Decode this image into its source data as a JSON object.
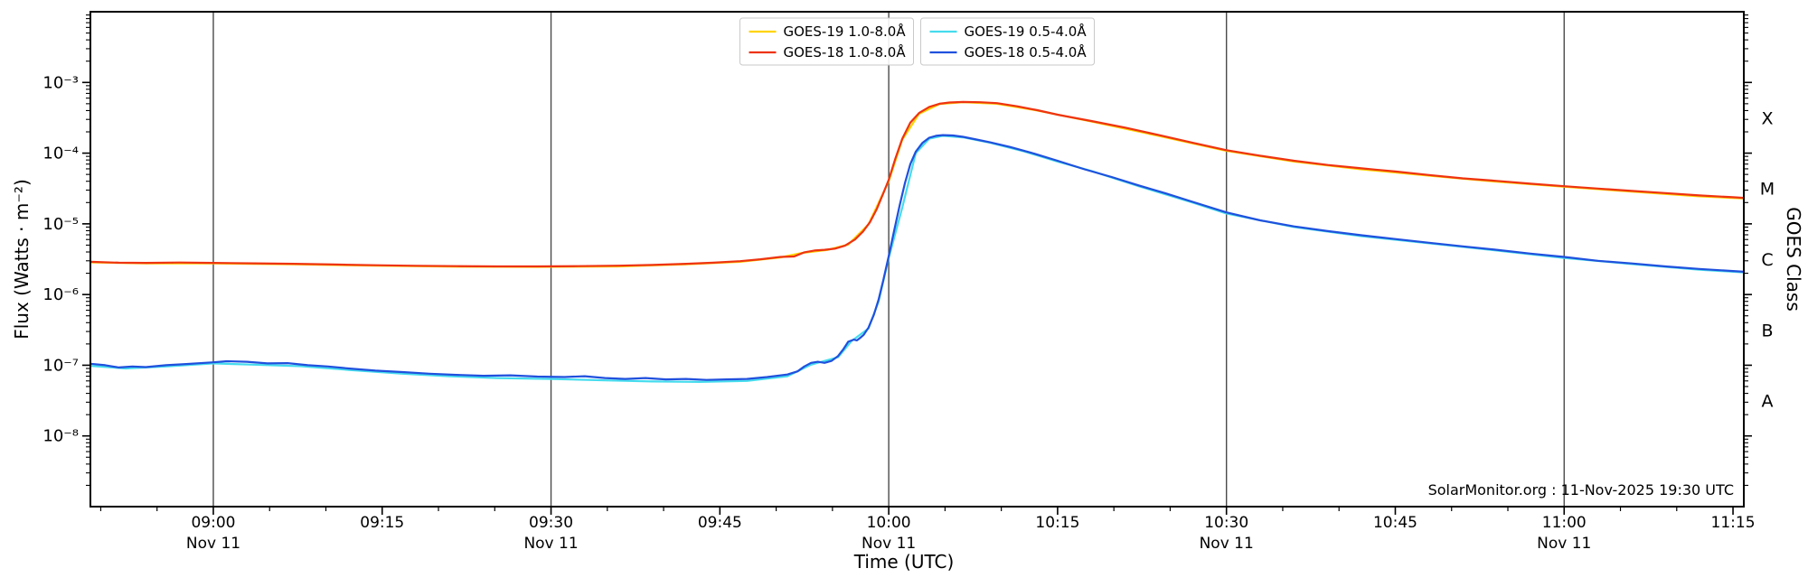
{
  "footer_note": "SolarMonitor.org : 11-Nov-2025 19:30 UTC",
  "chart_data": {
    "type": "line",
    "title": "",
    "xlabel": "Time (UTC)",
    "ylabel_left": "Flux (Watts · m⁻²)",
    "ylabel_right": "GOES Class",
    "x_domain_hours": [
      8.818,
      11.266
    ],
    "y_domain": [
      1e-09,
      0.01
    ],
    "grid": "vertical-30min",
    "legend_position": "top-center",
    "gridline_hours": [
      9.0,
      9.5,
      10.0,
      10.5,
      11.0
    ],
    "x_major_ticks": [
      {
        "hour": 9.0,
        "label": "09:00",
        "sublabel": "Nov 11"
      },
      {
        "hour": 9.25,
        "label": "09:15"
      },
      {
        "hour": 9.5,
        "label": "09:30",
        "sublabel": "Nov 11"
      },
      {
        "hour": 9.75,
        "label": "09:45"
      },
      {
        "hour": 10.0,
        "label": "10:00",
        "sublabel": "Nov 11"
      },
      {
        "hour": 10.25,
        "label": "10:15"
      },
      {
        "hour": 10.5,
        "label": "10:30",
        "sublabel": "Nov 11"
      },
      {
        "hour": 10.75,
        "label": "10:45"
      },
      {
        "hour": 11.0,
        "label": "11:00",
        "sublabel": "Nov 11"
      },
      {
        "hour": 11.25,
        "label": "11:15"
      }
    ],
    "y_ticks": [
      {
        "value": 0.001,
        "label": "10⁻³"
      },
      {
        "value": 0.0001,
        "label": "10⁻⁴"
      },
      {
        "value": 1e-05,
        "label": "10⁻⁵"
      },
      {
        "value": 1e-06,
        "label": "10⁻⁶"
      },
      {
        "value": 1e-07,
        "label": "10⁻⁷"
      },
      {
        "value": 1e-08,
        "label": "10⁻⁸"
      }
    ],
    "class_labels": [
      {
        "label": "X",
        "value": 0.0003162
      },
      {
        "label": "M",
        "value": 3.162e-05
      },
      {
        "label": "C",
        "value": 3.162e-06
      },
      {
        "label": "B",
        "value": 3.162e-07
      },
      {
        "label": "A",
        "value": 3.162e-08
      }
    ],
    "legend_boxes": [
      [
        0,
        2
      ],
      [
        1,
        3
      ]
    ],
    "series": [
      {
        "name": "GOES-19 1.0-8.0Å",
        "color": "#ffd400",
        "points": [
          [
            8.818,
            2.85e-06
          ],
          [
            8.9,
            2.75e-06
          ],
          [
            9.0,
            2.75e-06
          ],
          [
            9.12,
            2.68e-06
          ],
          [
            9.24,
            2.56e-06
          ],
          [
            9.36,
            2.48e-06
          ],
          [
            9.48,
            2.46e-06
          ],
          [
            9.6,
            2.5e-06
          ],
          [
            9.7,
            2.68e-06
          ],
          [
            9.78,
            2.9e-06
          ],
          [
            9.84,
            3.35e-06
          ],
          [
            9.87,
            3.85e-06
          ],
          [
            9.91,
            4.3e-06
          ],
          [
            9.94,
            5.1e-06
          ],
          [
            9.97,
            9.8e-06
          ],
          [
            10.0,
            4e-05
          ],
          [
            10.02,
            0.000155
          ],
          [
            10.045,
            0.00036
          ],
          [
            10.075,
            0.000495
          ],
          [
            10.11,
            0.000525
          ],
          [
            10.16,
            0.0005
          ],
          [
            10.22,
            0.0004
          ],
          [
            10.3,
            0.00028
          ],
          [
            10.4,
            0.000175
          ],
          [
            10.5,
            0.000108
          ],
          [
            10.6,
            7.6e-05
          ],
          [
            10.7,
            5.9e-05
          ],
          [
            10.8,
            4.8e-05
          ],
          [
            10.9,
            3.95e-05
          ],
          [
            11.0,
            3.35e-05
          ],
          [
            11.1,
            2.85e-05
          ],
          [
            11.2,
            2.45e-05
          ],
          [
            11.266,
            2.28e-05
          ]
        ]
      },
      {
        "name": "GOES-19 0.5-4.0Å",
        "color": "#45dcee",
        "points": [
          [
            8.818,
            9.8e-08
          ],
          [
            8.87,
            9e-08
          ],
          [
            8.93,
            9.6e-08
          ],
          [
            9.0,
            1.06e-07
          ],
          [
            9.06,
            1.02e-07
          ],
          [
            9.13,
            9.7e-08
          ],
          [
            9.2,
            8.6e-08
          ],
          [
            9.28,
            7.6e-08
          ],
          [
            9.35,
            7e-08
          ],
          [
            9.42,
            6.6e-08
          ],
          [
            9.5,
            6.4e-08
          ],
          [
            9.58,
            6.1e-08
          ],
          [
            9.65,
            5.9e-08
          ],
          [
            9.72,
            5.8e-08
          ],
          [
            9.79,
            6e-08
          ],
          [
            9.85,
            7e-08
          ],
          [
            9.885,
            1.02e-07
          ],
          [
            9.925,
            1.3e-07
          ],
          [
            9.945,
            2.2e-07
          ],
          [
            9.97,
            3.3e-07
          ],
          [
            9.985,
            8e-07
          ],
          [
            10.0,
            3.3e-06
          ],
          [
            10.02,
            1.7e-05
          ],
          [
            10.04,
            0.0001
          ],
          [
            10.06,
            0.00016
          ],
          [
            10.08,
            0.000176
          ],
          [
            10.11,
            0.000167
          ],
          [
            10.15,
            0.00014
          ],
          [
            10.2,
            0.000106
          ],
          [
            10.25,
            7.6e-05
          ],
          [
            10.3,
            5.6e-05
          ],
          [
            10.37,
            3.4e-05
          ],
          [
            10.45,
            2e-05
          ],
          [
            10.5,
            1.4e-05
          ],
          [
            10.6,
            9e-06
          ],
          [
            10.7,
            6.7e-06
          ],
          [
            10.8,
            5.3e-06
          ],
          [
            10.9,
            4.2e-06
          ],
          [
            11.0,
            3.3e-06
          ],
          [
            11.1,
            2.7e-06
          ],
          [
            11.2,
            2.25e-06
          ],
          [
            11.266,
            2.05e-06
          ]
        ]
      },
      {
        "name": "GOES-18 1.0-8.0Å",
        "color": "#ee3311",
        "points": [
          [
            8.818,
            2.9e-06
          ],
          [
            8.86,
            2.82e-06
          ],
          [
            8.9,
            2.8e-06
          ],
          [
            8.95,
            2.84e-06
          ],
          [
            9.0,
            2.8e-06
          ],
          [
            9.06,
            2.76e-06
          ],
          [
            9.12,
            2.72e-06
          ],
          [
            9.18,
            2.66e-06
          ],
          [
            9.24,
            2.6e-06
          ],
          [
            9.3,
            2.55e-06
          ],
          [
            9.36,
            2.52e-06
          ],
          [
            9.42,
            2.5e-06
          ],
          [
            9.48,
            2.5e-06
          ],
          [
            9.54,
            2.52e-06
          ],
          [
            9.6,
            2.56e-06
          ],
          [
            9.65,
            2.62e-06
          ],
          [
            9.7,
            2.72e-06
          ],
          [
            9.74,
            2.82e-06
          ],
          [
            9.78,
            2.96e-06
          ],
          [
            9.81,
            3.15e-06
          ],
          [
            9.84,
            3.4e-06
          ],
          [
            9.86,
            3.45e-06
          ],
          [
            9.875,
            3.95e-06
          ],
          [
            9.89,
            4.2e-06
          ],
          [
            9.905,
            4.3e-06
          ],
          [
            9.92,
            4.45e-06
          ],
          [
            9.935,
            4.9e-06
          ],
          [
            9.95,
            6e-06
          ],
          [
            9.962,
            7.8e-06
          ],
          [
            9.972,
            1.05e-05
          ],
          [
            9.982,
            1.6e-05
          ],
          [
            9.992,
            2.7e-05
          ],
          [
            10.0,
            4.2e-05
          ],
          [
            10.01,
            8.5e-05
          ],
          [
            10.02,
            0.00016
          ],
          [
            10.032,
            0.00027
          ],
          [
            10.045,
            0.00037
          ],
          [
            10.06,
            0.00045
          ],
          [
            10.075,
            0.0005
          ],
          [
            10.09,
            0.00052
          ],
          [
            10.11,
            0.00053
          ],
          [
            10.135,
            0.000525
          ],
          [
            10.16,
            0.00051
          ],
          [
            10.19,
            0.00046
          ],
          [
            10.22,
            0.000405
          ],
          [
            10.25,
            0.00035
          ],
          [
            10.3,
            0.000285
          ],
          [
            10.35,
            0.00023
          ],
          [
            10.4,
            0.00018
          ],
          [
            10.45,
            0.00014
          ],
          [
            10.5,
            0.00011
          ],
          [
            10.55,
            9.2e-05
          ],
          [
            10.6,
            7.8e-05
          ],
          [
            10.65,
            6.8e-05
          ],
          [
            10.7,
            6.1e-05
          ],
          [
            10.75,
            5.5e-05
          ],
          [
            10.8,
            4.9e-05
          ],
          [
            10.85,
            4.4e-05
          ],
          [
            10.9,
            4.05e-05
          ],
          [
            10.95,
            3.7e-05
          ],
          [
            11.0,
            3.4e-05
          ],
          [
            11.05,
            3.15e-05
          ],
          [
            11.1,
            2.92e-05
          ],
          [
            11.15,
            2.72e-05
          ],
          [
            11.2,
            2.52e-05
          ],
          [
            11.25,
            2.38e-05
          ],
          [
            11.266,
            2.33e-05
          ]
        ]
      },
      {
        "name": "GOES-18 0.5-4.0Å",
        "color": "#2050dd",
        "points": [
          [
            8.818,
            1.05e-07
          ],
          [
            8.84,
            1e-07
          ],
          [
            8.86,
            9.3e-08
          ],
          [
            8.88,
            9.6e-08
          ],
          [
            8.9,
            9.4e-08
          ],
          [
            8.93,
            1e-07
          ],
          [
            8.96,
            1.04e-07
          ],
          [
            9.0,
            1.1e-07
          ],
          [
            9.02,
            1.14e-07
          ],
          [
            9.05,
            1.12e-07
          ],
          [
            9.08,
            1.06e-07
          ],
          [
            9.11,
            1.07e-07
          ],
          [
            9.14,
            1e-07
          ],
          [
            9.17,
            9.6e-08
          ],
          [
            9.2,
            9e-08
          ],
          [
            9.24,
            8.4e-08
          ],
          [
            9.28,
            8e-08
          ],
          [
            9.32,
            7.6e-08
          ],
          [
            9.36,
            7.3e-08
          ],
          [
            9.4,
            7.1e-08
          ],
          [
            9.44,
            7.2e-08
          ],
          [
            9.48,
            6.9e-08
          ],
          [
            9.52,
            6.8e-08
          ],
          [
            9.55,
            7e-08
          ],
          [
            9.58,
            6.6e-08
          ],
          [
            9.61,
            6.4e-08
          ],
          [
            9.64,
            6.6e-08
          ],
          [
            9.67,
            6.3e-08
          ],
          [
            9.7,
            6.4e-08
          ],
          [
            9.73,
            6.2e-08
          ],
          [
            9.76,
            6.3e-08
          ],
          [
            9.79,
            6.4e-08
          ],
          [
            9.82,
            6.8e-08
          ],
          [
            9.85,
            7.4e-08
          ],
          [
            9.865,
            8.2e-08
          ],
          [
            9.875,
            9.6e-08
          ],
          [
            9.885,
            1.08e-07
          ],
          [
            9.895,
            1.12e-07
          ],
          [
            9.905,
            1.08e-07
          ],
          [
            9.915,
            1.15e-07
          ],
          [
            9.925,
            1.35e-07
          ],
          [
            9.933,
            1.7e-07
          ],
          [
            9.94,
            2.15e-07
          ],
          [
            9.948,
            2.3e-07
          ],
          [
            9.953,
            2.25e-07
          ],
          [
            9.958,
            2.45e-07
          ],
          [
            9.963,
            2.7e-07
          ],
          [
            9.97,
            3.4e-07
          ],
          [
            9.978,
            5.2e-07
          ],
          [
            9.985,
            8.5e-07
          ],
          [
            9.992,
            1.6e-06
          ],
          [
            10.0,
            3.5e-06
          ],
          [
            10.008,
            8e-06
          ],
          [
            10.016,
            1.8e-05
          ],
          [
            10.024,
            3.8e-05
          ],
          [
            10.032,
            7e-05
          ],
          [
            10.04,
            0.000105
          ],
          [
            10.05,
            0.00014
          ],
          [
            10.06,
            0.000165
          ],
          [
            10.07,
            0.000176
          ],
          [
            10.08,
            0.00018
          ],
          [
            10.095,
            0.000178
          ],
          [
            10.11,
            0.00017
          ],
          [
            10.13,
            0.000156
          ],
          [
            10.15,
            0.000142
          ],
          [
            10.18,
            0.000122
          ],
          [
            10.21,
            0.000102
          ],
          [
            10.25,
            7.8e-05
          ],
          [
            10.29,
            5.9e-05
          ],
          [
            10.33,
            4.6e-05
          ],
          [
            10.37,
            3.5e-05
          ],
          [
            10.41,
            2.7e-05
          ],
          [
            10.45,
            2.05e-05
          ],
          [
            10.5,
            1.45e-05
          ],
          [
            10.55,
            1.12e-05
          ],
          [
            10.6,
            9.2e-06
          ],
          [
            10.65,
            7.9e-06
          ],
          [
            10.7,
            6.9e-06
          ],
          [
            10.75,
            6.1e-06
          ],
          [
            10.8,
            5.4e-06
          ],
          [
            10.85,
            4.8e-06
          ],
          [
            10.9,
            4.3e-06
          ],
          [
            10.95,
            3.8e-06
          ],
          [
            11.0,
            3.4e-06
          ],
          [
            11.05,
            3e-06
          ],
          [
            11.1,
            2.75e-06
          ],
          [
            11.15,
            2.5e-06
          ],
          [
            11.2,
            2.3e-06
          ],
          [
            11.25,
            2.15e-06
          ],
          [
            11.266,
            2.1e-06
          ]
        ]
      }
    ]
  }
}
